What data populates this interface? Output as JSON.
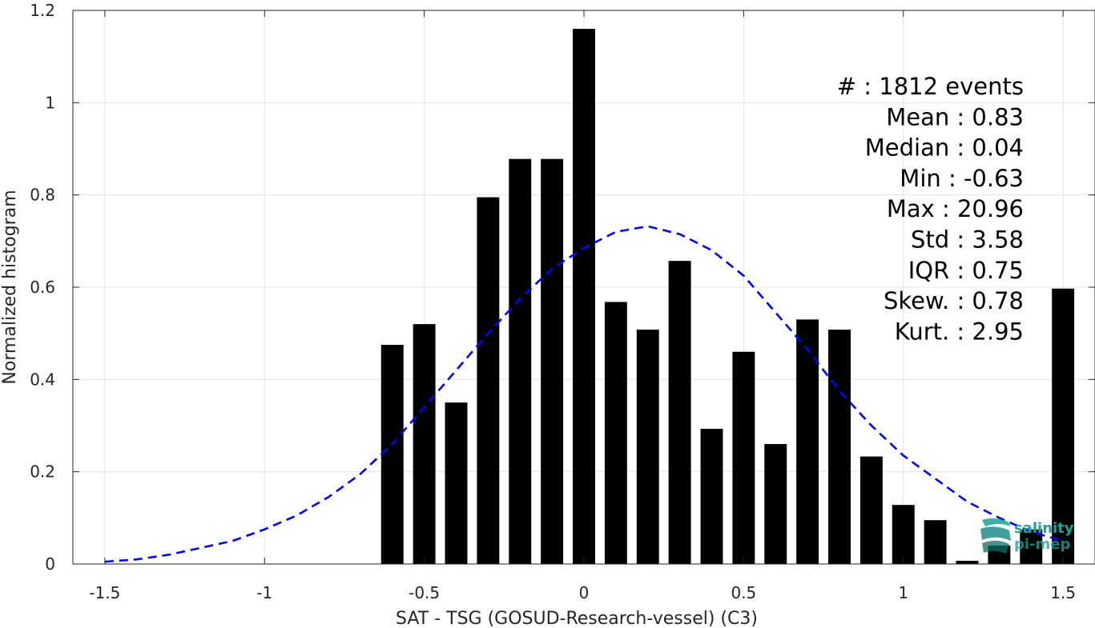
{
  "chart_data": {
    "type": "bar",
    "xlabel": "SAT - TSG (GOSUD-Research-vessel) (C3)",
    "ylabel": "Normalized histogram",
    "xlim": [
      -1.6,
      1.6
    ],
    "ylim": [
      0,
      1.2
    ],
    "xticks": [
      -1.5,
      -1,
      -0.5,
      0,
      0.5,
      1,
      1.5
    ],
    "xtick_labels": [
      "-1.5",
      "-1",
      "-0.5",
      "0",
      "0.5",
      "1",
      "1.5"
    ],
    "yticks": [
      0,
      0.2,
      0.4,
      0.6,
      0.8,
      1,
      1.2
    ],
    "ytick_labels": [
      "0",
      "0.2",
      "0.4",
      "0.6",
      "0.8",
      "1",
      "1.2"
    ],
    "grid": true,
    "bar_width": 0.07,
    "bars": {
      "x": [
        -0.6,
        -0.5,
        -0.4,
        -0.3,
        -0.2,
        -0.1,
        0.0,
        0.1,
        0.2,
        0.3,
        0.4,
        0.5,
        0.6,
        0.7,
        0.8,
        0.9,
        1.0,
        1.1,
        1.2,
        1.3,
        1.4,
        1.5
      ],
      "values": [
        0.475,
        0.52,
        0.35,
        0.795,
        0.878,
        0.878,
        1.16,
        0.568,
        0.508,
        0.657,
        0.293,
        0.46,
        0.26,
        0.53,
        0.508,
        0.233,
        0.128,
        0.095,
        0.007,
        0.04,
        0.075,
        0.597
      ],
      "color": "#000000"
    },
    "fit_curve": {
      "style": "dashed",
      "color": "#0000ff",
      "x": [
        -1.5,
        -1.4,
        -1.3,
        -1.2,
        -1.1,
        -1.0,
        -0.9,
        -0.8,
        -0.7,
        -0.6,
        -0.5,
        -0.4,
        -0.3,
        -0.2,
        -0.1,
        0.0,
        0.1,
        0.2,
        0.3,
        0.4,
        0.5,
        0.6,
        0.7,
        0.8,
        0.9,
        1.0,
        1.1,
        1.2,
        1.3,
        1.4,
        1.5
      ],
      "y": [
        0.005,
        0.01,
        0.02,
        0.035,
        0.05,
        0.075,
        0.105,
        0.145,
        0.195,
        0.26,
        0.34,
        0.42,
        0.5,
        0.575,
        0.64,
        0.685,
        0.72,
        0.732,
        0.715,
        0.68,
        0.625,
        0.545,
        0.465,
        0.375,
        0.3,
        0.235,
        0.185,
        0.135,
        0.1,
        0.07,
        0.05
      ]
    },
    "stats": [
      {
        "label": "#  : 1812 events"
      },
      {
        "label": "Mean : 0.83"
      },
      {
        "label": "Median : 0.04"
      },
      {
        "label": "Min : -0.63"
      },
      {
        "label": "Max : 20.96"
      },
      {
        "label": "Std : 3.58"
      },
      {
        "label": "IQR : 0.75"
      },
      {
        "label": "Skew. : 0.78"
      },
      {
        "label": "Kurt. : 2.95"
      }
    ]
  },
  "logo": {
    "line1": "salinity",
    "line2": "pi-mep",
    "color": "#1aa39a"
  }
}
